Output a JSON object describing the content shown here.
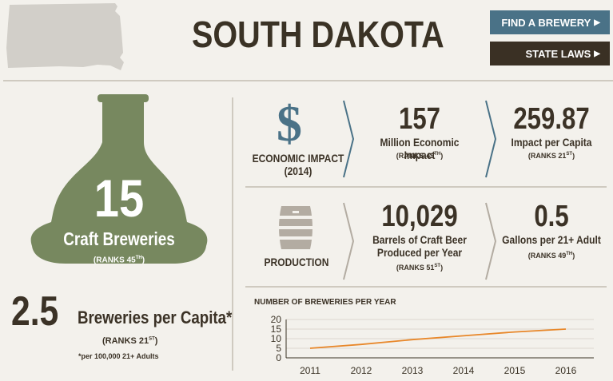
{
  "header": {
    "title": "SOUTH DAKOTA",
    "find_button": "FIND A BREWERY",
    "laws_button": "STATE LAWS",
    "arrow": "▶"
  },
  "breweries": {
    "count": "15",
    "label": "Craft Breweries",
    "rank_prefix": "(RANKS 45",
    "rank_sup": "TH",
    "rank_suffix": ")"
  },
  "per_capita": {
    "value": "2.5",
    "label": "Breweries per Capita*",
    "rank_prefix": "(RANKS 21",
    "rank_sup": "ST",
    "rank_suffix": ")",
    "note": "*per 100,000 21+ Adults"
  },
  "economic": {
    "icon": "dollar-icon",
    "heading_line1": "ECONOMIC IMPACT",
    "heading_line2": "(2014)",
    "impact_value": "157",
    "impact_label": "Million Economic Impact",
    "impact_rank_prefix": "(RANKS 49",
    "impact_rank_sup": "TH",
    "impact_rank_suffix": ")",
    "capita_value": "259.87",
    "capita_label": "Impact per Capita",
    "capita_rank_prefix": "(RANKS 21",
    "capita_rank_sup": "ST",
    "capita_rank_suffix": ")"
  },
  "production": {
    "icon": "barrel-icon",
    "heading": "PRODUCTION",
    "barrels_value": "10,029",
    "barrels_label_line1": "Barrels of Craft Beer",
    "barrels_label_line2": "Produced per Year",
    "barrels_rank_prefix": "(RANKS 51",
    "barrels_rank_sup": "ST",
    "barrels_rank_suffix": ")",
    "gallons_value": "0.5",
    "gallons_label": "Gallons per 21+ Adult",
    "gallons_rank_prefix": "(RANKS 49",
    "gallons_rank_sup": "TH",
    "gallons_rank_suffix": ")"
  },
  "colors": {
    "accent_blue": "#4a7287",
    "dark_brown": "#3a3024",
    "bottle_green": "#77885f",
    "line_orange": "#e8872a",
    "divider": "#cfcac0"
  },
  "chart_data": {
    "type": "line",
    "title": "NUMBER OF BREWERIES PER YEAR",
    "x": [
      2011,
      2012,
      2013,
      2014,
      2015,
      2016
    ],
    "y": [
      5,
      7,
      9.5,
      11.5,
      13.5,
      15
    ],
    "ylim": [
      0,
      20
    ],
    "yticks": [
      0,
      5,
      10,
      15,
      20
    ],
    "grid": true
  }
}
